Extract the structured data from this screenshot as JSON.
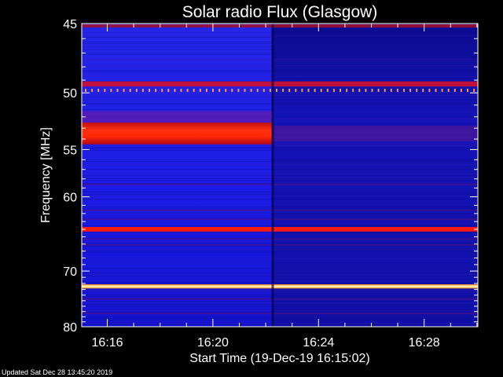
{
  "chart_data": {
    "type": "heatmap",
    "title": "Solar radio Flux (Glasgow)",
    "xlabel": "Start Time (19-Dec-19 16:15:02)",
    "ylabel": "Frequency [MHz]",
    "x_unit": "time (HH:MM, 19-Dec-19)",
    "y_unit": "MHz",
    "xlim": [
      "16:15:02",
      "16:30:02"
    ],
    "ylim": [
      80,
      45
    ],
    "x_ticks": [
      "16:16",
      "16:20",
      "16:24",
      "16:28"
    ],
    "y_ticks": [
      "45",
      "50",
      "55",
      "60",
      "70",
      "80"
    ],
    "y_scale": "reciprocal",
    "colormap": "dark blue - blue - red - yellow - white",
    "features": [
      {
        "kind": "band",
        "freq_center": 53.5,
        "freq_width": 2.0,
        "time_start": "16:15:02",
        "time_end": "16:22:15",
        "intensity": "high",
        "color": "#ff2200"
      },
      {
        "kind": "band",
        "freq_center": 64.0,
        "freq_width": 0.6,
        "time_start": "16:15:02",
        "time_end": "16:30:02",
        "intensity": "high",
        "color": "#ff1a10"
      },
      {
        "kind": "band",
        "freq_center": 72.5,
        "freq_width": 0.7,
        "time_start": "16:15:02",
        "time_end": "16:30:02",
        "intensity": "very high",
        "color": "#ffffa0"
      },
      {
        "kind": "band",
        "freq_center": 49.3,
        "freq_width": 0.4,
        "time_start": "16:15:02",
        "time_end": "16:30:02",
        "intensity": "medium",
        "color": "#c01040"
      },
      {
        "kind": "dotted_line",
        "freq_center": 49.8,
        "time_start": "16:15:02",
        "time_end": "16:30:02",
        "intensity": "high",
        "color": "#ff9050"
      },
      {
        "kind": "change",
        "time": "16:22:15",
        "description": "background level drops"
      }
    ]
  },
  "footer": {
    "updated": "Updated Sat Dec 28 13:45:20 2019"
  },
  "colors": {
    "background": "#000000",
    "deep_blue": "#1010d0",
    "dark_blue": "#0a0a80",
    "red_band": "#ff2200",
    "hot_line": "#ffffc0"
  }
}
